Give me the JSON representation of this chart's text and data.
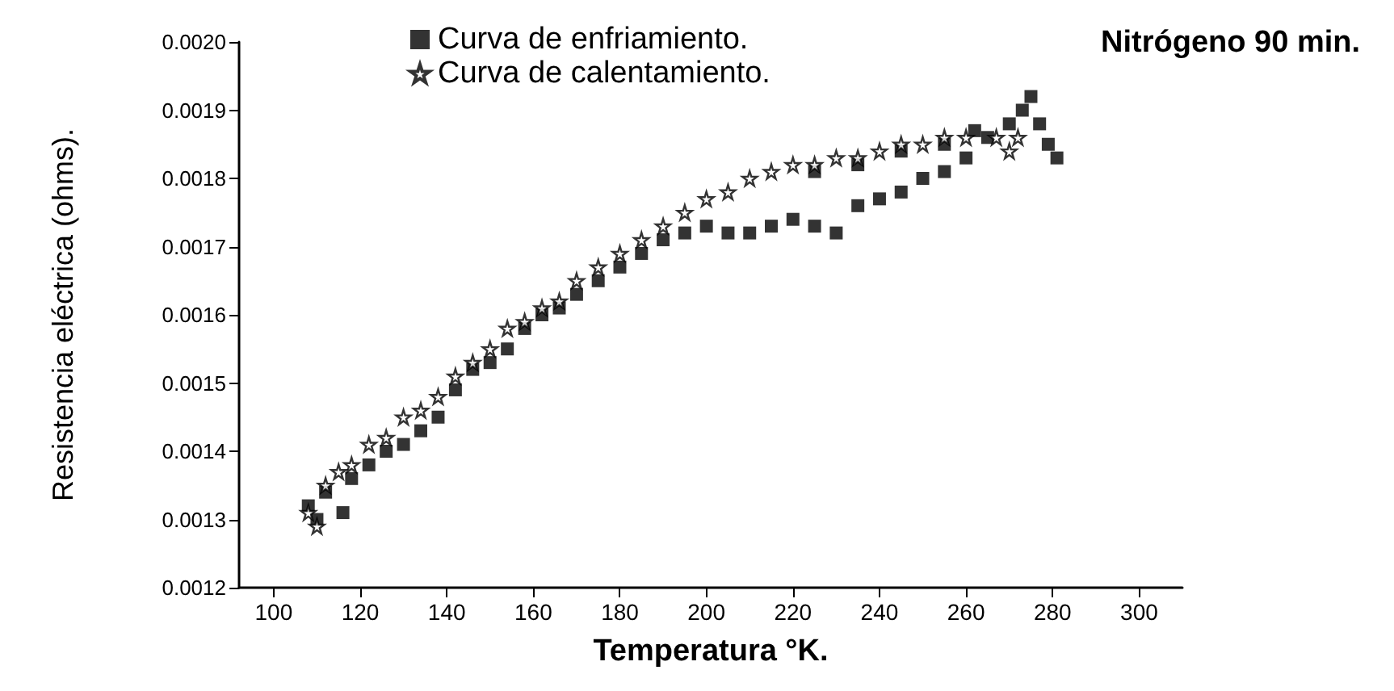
{
  "chart_data": {
    "type": "scatter",
    "title": "Nitrógeno 90 min.",
    "xlabel": "Temperatura °K.",
    "ylabel": "Resistencia eléctrica (ohms).",
    "xlim": [
      92,
      310
    ],
    "xticks": [
      100,
      120,
      140,
      160,
      180,
      200,
      220,
      240,
      260,
      280,
      300
    ],
    "ylim": [
      0.0012,
      0.002
    ],
    "yticks": [
      0.0012,
      0.0013,
      0.0014,
      0.0015,
      0.0016,
      0.0017,
      0.0018,
      0.0019,
      {
        "value": 0.002,
        "label": "0.0020"
      }
    ],
    "grid": false,
    "legend": "top",
    "series": [
      {
        "name": "Curva de enfriamiento.",
        "color": "#000000",
        "marker": "square",
        "x": [
          108,
          110,
          112,
          116,
          118,
          122,
          126,
          130,
          134,
          138,
          142,
          146,
          150,
          154,
          158,
          162,
          166,
          170,
          175,
          180,
          185,
          190,
          195,
          200,
          205,
          210,
          215,
          220,
          225,
          230,
          235,
          240,
          245,
          250,
          255,
          260,
          265,
          270,
          273,
          275,
          277,
          279,
          281,
          225,
          235,
          245,
          255,
          262
        ],
        "values": [
          0.00132,
          0.0013,
          0.00134,
          0.00131,
          0.00136,
          0.00138,
          0.0014,
          0.00141,
          0.00143,
          0.00145,
          0.00149,
          0.00152,
          0.00153,
          0.00155,
          0.00158,
          0.0016,
          0.00161,
          0.00163,
          0.00165,
          0.00167,
          0.00169,
          0.00171,
          0.00172,
          0.00173,
          0.00172,
          0.00172,
          0.00173,
          0.00174,
          0.00173,
          0.00172,
          0.00176,
          0.00177,
          0.00178,
          0.0018,
          0.00181,
          0.00183,
          0.00186,
          0.00188,
          0.0019,
          0.00192,
          0.00188,
          0.00185,
          0.00183,
          0.00181,
          0.00182,
          0.00184,
          0.00185,
          0.00187
        ]
      },
      {
        "name": "Curva de calentamiento.",
        "color": "#000000",
        "marker": "star",
        "x": [
          108,
          110,
          112,
          115,
          118,
          122,
          126,
          130,
          134,
          138,
          142,
          146,
          150,
          154,
          158,
          162,
          166,
          170,
          175,
          180,
          185,
          190,
          195,
          200,
          205,
          210,
          215,
          220,
          225,
          230,
          235,
          240,
          245,
          250,
          255,
          260,
          267,
          270,
          272
        ],
        "values": [
          0.00131,
          0.00129,
          0.00135,
          0.00137,
          0.00138,
          0.00141,
          0.00142,
          0.00145,
          0.00146,
          0.00148,
          0.00151,
          0.00153,
          0.00155,
          0.00158,
          0.00159,
          0.00161,
          0.00162,
          0.00165,
          0.00167,
          0.00169,
          0.00171,
          0.00173,
          0.00175,
          0.00177,
          0.00178,
          0.0018,
          0.00181,
          0.00182,
          0.00182,
          0.00183,
          0.00183,
          0.00184,
          0.00185,
          0.00185,
          0.00186,
          0.00186,
          0.00186,
          0.00184,
          0.00186
        ]
      }
    ]
  }
}
